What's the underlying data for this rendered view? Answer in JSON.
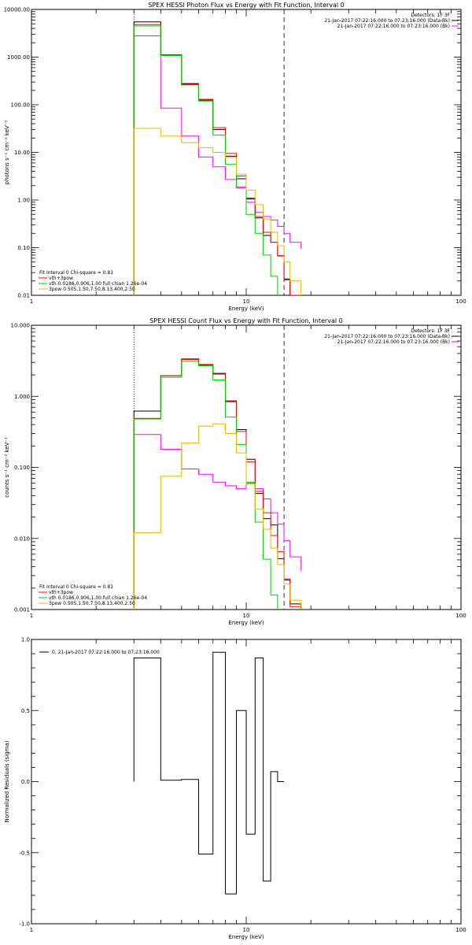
{
  "colors": {
    "data": "#000000",
    "background": "#ff00ff",
    "total_fit": "#ff0000",
    "vth_fit": "#00cc00",
    "bpow_fit": "#e6b800"
  },
  "chart_data": [
    {
      "type": "line",
      "title": "SPEX HESSI Photon Flux vs Energy with Fit Function, Interval 0",
      "xlabel": "Energy (keV)",
      "ylabel": "photons s⁻¹ cm⁻² keV⁻¹",
      "xscale": "log",
      "yscale": "log",
      "xlim": [
        1,
        100
      ],
      "ylim": [
        0.01,
        10000
      ],
      "xticks": [
        {
          "v": 1,
          "label": "1"
        },
        {
          "v": 10,
          "label": "10"
        },
        {
          "v": 100,
          "label": "100"
        }
      ],
      "yticks": [
        {
          "v": 0.01,
          "label": "0.01"
        },
        {
          "v": 0.1,
          "label": "0.10"
        },
        {
          "v": 1,
          "label": "1.00"
        },
        {
          "v": 10,
          "label": "10.00"
        },
        {
          "v": 100,
          "label": "100.00"
        },
        {
          "v": 1000,
          "label": "1000.00"
        },
        {
          "v": 10000,
          "label": "10000.00"
        }
      ],
      "fit_range": [
        3,
        15
      ],
      "legend_top": [
        "Detectors: 1F 3F",
        "21-Jan-2017 07:22:16.000 to 07:23:16.000 (Data-Bk)",
        "21-Jan-2017 07:22:16.000 to 07:23:16.000 (Bk)"
      ],
      "legend_bottom": [
        {
          "label": "Fit Interval 0   Chi-square = 0.81",
          "color": ""
        },
        {
          "label": "vth+3pow",
          "color": "#ff0000"
        },
        {
          "label": "vth 0.0186,0.906,1.00  full chian 1.26e-04",
          "color": "#00cc00"
        },
        {
          "label": "3pow 0.505,1.50,7.50,8.13,400,2.50",
          "color": "#e6b800"
        }
      ],
      "edges": [
        3,
        4,
        5,
        6,
        7,
        8,
        9,
        10,
        11,
        12,
        13,
        14,
        15,
        16,
        18
      ],
      "series": [
        {
          "name": "Data-Bk",
          "color": "#000000",
          "values": [
            5500,
            1100,
            270,
            125,
            30,
            8.3,
            2.8,
            1.05,
            0.42,
            0.18,
            0.13,
            0.067,
            0.022,
            0.0095
          ]
        },
        {
          "name": "Bk",
          "color": "#ff00ff",
          "values": [
            2800,
            85,
            22,
            8,
            5,
            2.7,
            1.8,
            0.9,
            0.55,
            0.45,
            0.38,
            0.28,
            0.2,
            0.13,
            0.095
          ]
        },
        {
          "name": "vth+3pow",
          "color": "#ff0000",
          "values": [
            4800,
            1120,
            280,
            130,
            33,
            9.5,
            3.2,
            1.1,
            0.45,
            0.21,
            0.13,
            0.068,
            0.021,
            0.0082
          ]
        },
        {
          "name": "vth",
          "color": "#00cc00",
          "values": [
            4500,
            1080,
            260,
            120,
            23,
            5.6,
            1.9,
            0.5,
            0.2,
            0.07,
            0.025
          ]
        },
        {
          "name": "3pow",
          "color": "#e6b800",
          "values": [
            32,
            22,
            16,
            12.5,
            10,
            7.8,
            3.5,
            1.6,
            0.8,
            0.4,
            0.21,
            0.11,
            0.05,
            0.02,
            0.008
          ]
        }
      ]
    },
    {
      "type": "line",
      "title": "SPEX HESSI Count Flux vs Energy with Fit Function, Interval 0",
      "xlabel": "Energy (keV)",
      "ylabel": "counts s⁻¹ cm⁻² keV⁻¹",
      "xscale": "log",
      "yscale": "log",
      "xlim": [
        1,
        100
      ],
      "ylim": [
        0.001,
        10
      ],
      "xticks": [
        {
          "v": 1,
          "label": "1"
        },
        {
          "v": 10,
          "label": "10"
        },
        {
          "v": 100,
          "label": "100"
        }
      ],
      "yticks": [
        {
          "v": 0.001,
          "label": "0.001"
        },
        {
          "v": 0.01,
          "label": "0.010"
        },
        {
          "v": 0.1,
          "label": "0.100"
        },
        {
          "v": 1,
          "label": "1.000"
        },
        {
          "v": 10,
          "label": "10.000"
        }
      ],
      "fit_range": [
        3,
        15
      ],
      "legend_top": [
        "Detectors: 1F 3F",
        "21-Jan-2017 07:22:16.000 to 07:23:16.000 (Data-Bk)",
        "21-Jan-2017 07:22:16.000 to 07:23:16.000 (Bk)"
      ],
      "legend_bottom": [
        {
          "label": "Fit Interval 0   Chi-square = 0.81",
          "color": ""
        },
        {
          "label": "vth+3pow",
          "color": "#ff0000"
        },
        {
          "label": "vth 0.0186,0.906,1.00  full chian 1.26e-04",
          "color": "#00cc00"
        },
        {
          "label": "3pow 0.505,1.50,7.50,8.13,400,2.50",
          "color": "#e6b800"
        }
      ],
      "edges": [
        3,
        4,
        5,
        6,
        7,
        8,
        9,
        10,
        11,
        12,
        13,
        14,
        15,
        16,
        18
      ],
      "series": [
        {
          "name": "Data-Bk",
          "color": "#000000",
          "values": [
            0.62,
            1.95,
            3.35,
            2.75,
            2.1,
            0.86,
            0.34,
            0.13,
            0.043,
            0.019,
            0.0155,
            0.0052,
            0.0026,
            0.0012
          ]
        },
        {
          "name": "Bk",
          "color": "#ff00ff",
          "values": [
            0.29,
            0.18,
            0.095,
            0.08,
            0.062,
            0.055,
            0.05,
            0.06,
            0.05,
            0.036,
            0.023,
            0.016,
            0.0093,
            0.0055,
            0.0035
          ]
        },
        {
          "name": "vth+3pow",
          "color": "#ff0000",
          "values": [
            0.49,
            1.95,
            3.3,
            2.8,
            2.05,
            0.84,
            0.32,
            0.12,
            0.046,
            0.023,
            0.011,
            0.0065,
            0.0027,
            0.0011
          ]
        },
        {
          "name": "vth",
          "color": "#00cc00",
          "values": [
            0.48,
            1.85,
            3.1,
            2.7,
            1.7,
            0.51,
            0.21,
            0.062,
            0.017,
            0.0051,
            0.0016
          ]
        },
        {
          "name": "3pow",
          "color": "#e6b800",
          "values": [
            0.012,
            0.075,
            0.22,
            0.38,
            0.41,
            0.3,
            0.16,
            0.058,
            0.026,
            0.0135,
            0.0073,
            0.0043,
            0.0023,
            0.00135,
            0.0008
          ]
        }
      ]
    },
    {
      "type": "line",
      "title": "",
      "xlabel": "Energy (keV)",
      "ylabel": "Normalized Residuals (sigma)",
      "xscale": "log",
      "yscale": "linear",
      "xlim": [
        1,
        100
      ],
      "ylim": [
        -1,
        1
      ],
      "xticks": [
        {
          "v": 1,
          "label": "1"
        },
        {
          "v": 10,
          "label": "10"
        },
        {
          "v": 100,
          "label": "100"
        }
      ],
      "yticks": [
        {
          "v": -1,
          "label": "-1.0"
        },
        {
          "v": -0.5,
          "label": "-0.5"
        },
        {
          "v": 0,
          "label": "0.0"
        },
        {
          "v": 0.5,
          "label": "0.5"
        },
        {
          "v": 1,
          "label": "1.0"
        }
      ],
      "legend": "0, 21-Jan-2017 07:22:16.000 to 07:23:16.000",
      "edges": [
        3,
        4,
        5,
        6,
        7,
        8,
        9,
        10,
        11,
        12,
        13,
        14,
        15
      ],
      "series": [
        {
          "name": "",
          "color": "#000000",
          "values": [
            0.87,
            0.01,
            0.015,
            -0.51,
            0.91,
            -0.79,
            0.5,
            -0.37,
            0.87,
            -0.7,
            0.07,
            0
          ]
        }
      ]
    }
  ]
}
